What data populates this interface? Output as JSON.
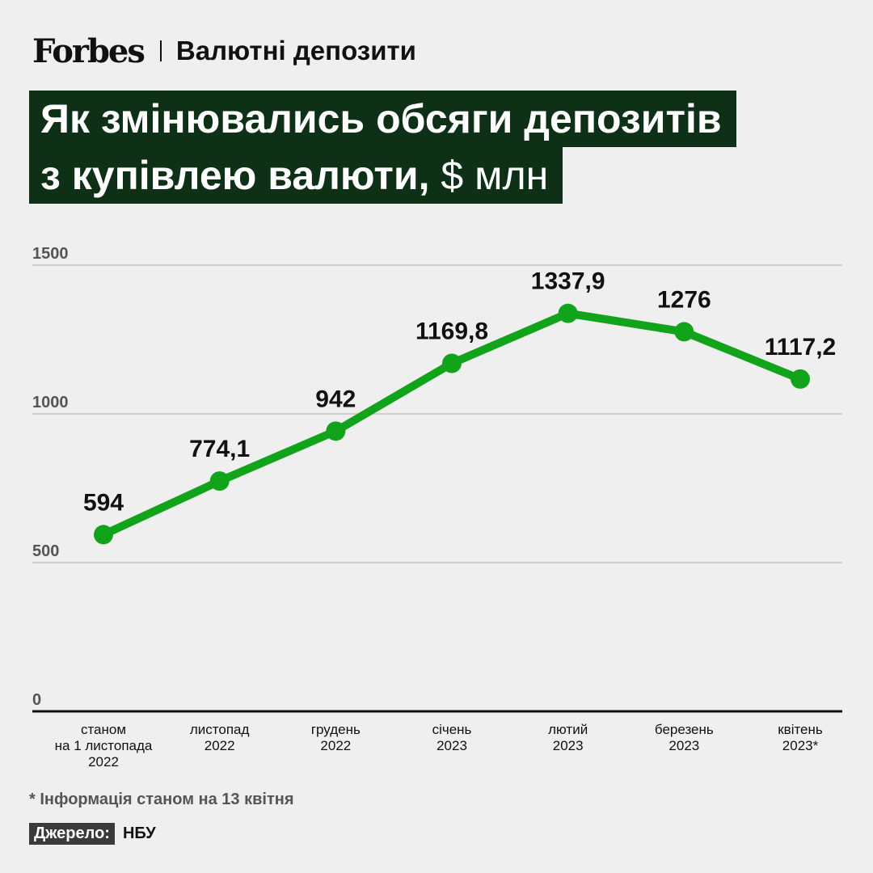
{
  "header": {
    "logo": "Forbes",
    "section": "Валютні депозити"
  },
  "title": {
    "line1": "Як змінювались обсяги депозитів",
    "line2": "з купівлею валюти,",
    "unit": "$ млн"
  },
  "colors": {
    "series": "#11a31a",
    "title_bg": "#0d3016",
    "background": "#efefef"
  },
  "chart_data": {
    "type": "line",
    "categories": [
      [
        "станом",
        "на 1 листопада",
        "2022"
      ],
      [
        "листопад",
        "2022"
      ],
      [
        "грудень",
        "2022"
      ],
      [
        "січень",
        "2023"
      ],
      [
        "лютий",
        "2023"
      ],
      [
        "березень",
        "2023"
      ],
      [
        "квітень",
        "2023*"
      ]
    ],
    "values": [
      594,
      774.1,
      942,
      1169.8,
      1337.9,
      1276,
      1117.2
    ],
    "value_labels": [
      "594",
      "774,1",
      "942",
      "1169,8",
      "1337,9",
      "1276",
      "1117,2"
    ],
    "ylim": [
      0,
      1500
    ],
    "yticks": [
      "0",
      "500",
      "1000",
      "1500"
    ],
    "grid": true
  },
  "footnote": "* Інформація станом на 13 квітня",
  "source": {
    "label": "Джерело:",
    "value": "НБУ"
  }
}
